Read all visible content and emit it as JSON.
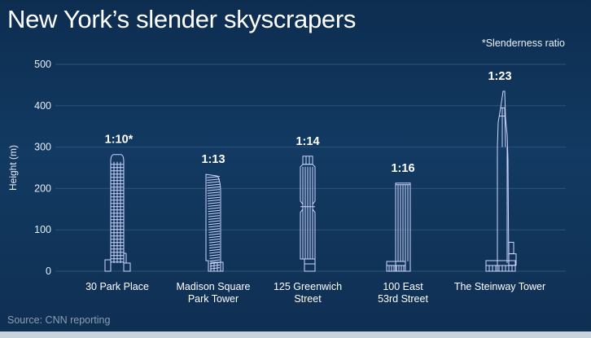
{
  "title": "New York’s slender skyscrapers",
  "note": "*Slenderness ratio",
  "source": "Source: CNN reporting",
  "colors": {
    "background": "#123a62",
    "gridline": "#2f5176",
    "building_outline": "#cfd6ff",
    "text": "#ffffff"
  },
  "chart_data": {
    "type": "bar",
    "title": "New York’s slender skyscrapers",
    "xlabel": "",
    "ylabel": "Height (m)",
    "ylim": [
      0,
      500
    ],
    "yticks": [
      0,
      100,
      200,
      300,
      400,
      500
    ],
    "grid": true,
    "categories": [
      "30 Park Place",
      "Madison Square Park Tower",
      "125 Greenwich Street",
      "100 East 53rd Street",
      "The Steinway Tower"
    ],
    "category_lines": [
      [
        "30 Park Place"
      ],
      [
        "Madison Square",
        "Park Tower"
      ],
      [
        "125 Greenwich",
        "Street"
      ],
      [
        "100 East",
        "53rd Street"
      ],
      [
        "The Steinway Tower"
      ]
    ],
    "values": [
      282,
      234,
      278,
      213,
      435
    ],
    "data_labels": [
      "1:10*",
      "1:13",
      "1:14",
      "1:16",
      "1:23"
    ]
  }
}
